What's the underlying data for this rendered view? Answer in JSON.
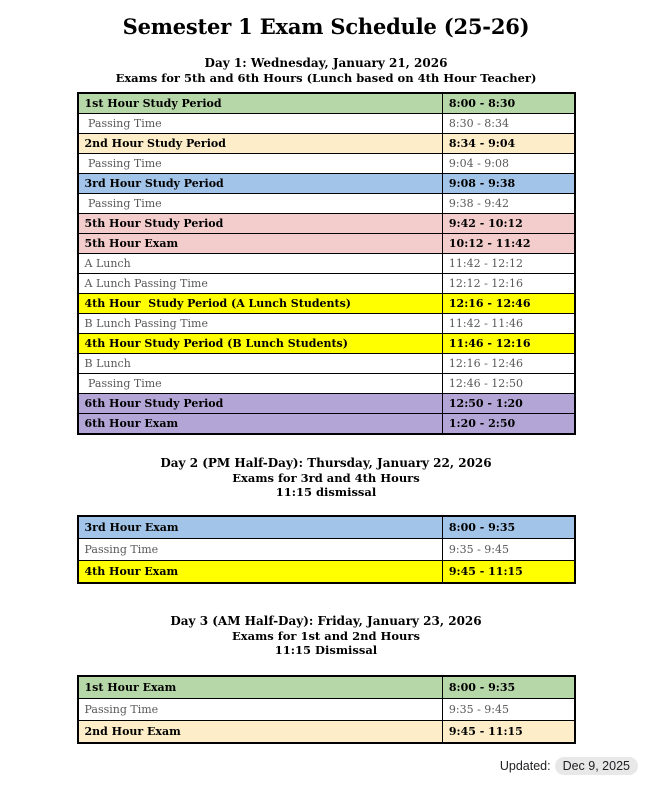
{
  "title": "Semester 1 Exam Schedule (25-26)",
  "footer": {
    "updated_label": "Updated:",
    "updated_date": "Dec 9, 2025"
  },
  "colors": {
    "green": "#b6d7a8",
    "cream": "#fdeec9",
    "blue": "#a2c4e8",
    "pink": "#f3cccc",
    "yellow": "#ffff00",
    "purple": "#b3a6d7",
    "white": "#ffffff"
  },
  "sections": [
    {
      "heading": [
        "Day 1: Wednesday, January 21, 2026",
        "Exams for 5th and 6th Hours (Lunch based on 4th Hour Teacher)"
      ],
      "rows": [
        {
          "label": "1st Hour Study Period",
          "time": "8:00 - 8:30",
          "color": "green",
          "bold": true
        },
        {
          "label": " Passing Time",
          "time": "8:30 - 8:34",
          "color": "white",
          "bold": false
        },
        {
          "label": "2nd Hour Study Period",
          "time": "8:34 - 9:04",
          "color": "cream",
          "bold": true
        },
        {
          "label": " Passing Time",
          "time": "9:04 - 9:08",
          "color": "white",
          "bold": false
        },
        {
          "label": "3rd Hour Study Period",
          "time": "9:08 - 9:38",
          "color": "blue",
          "bold": true
        },
        {
          "label": " Passing Time",
          "time": "9:38 - 9:42",
          "color": "white",
          "bold": false
        },
        {
          "label": "5th Hour Study Period",
          "time": "9:42 - 10:12",
          "color": "pink",
          "bold": true
        },
        {
          "label": "5th Hour Exam",
          "time": "10:12 - 11:42",
          "color": "pink",
          "bold": true
        },
        {
          "label": "A Lunch",
          "time": "11:42 - 12:12",
          "color": "white",
          "bold": false
        },
        {
          "label": "A Lunch Passing Time",
          "time": "12:12 - 12:16",
          "color": "white",
          "bold": false
        },
        {
          "label": "4th Hour  Study Period (A Lunch Students)",
          "time": "12:16 - 12:46",
          "color": "yellow",
          "bold": true
        },
        {
          "label": "B Lunch Passing Time",
          "time": "11:42 - 11:46",
          "color": "white",
          "bold": false
        },
        {
          "label": "4th Hour Study Period (B Lunch Students)",
          "time": "11:46 - 12:16",
          "color": "yellow",
          "bold": true
        },
        {
          "label": "B Lunch",
          "time": "12:16 - 12:46",
          "color": "white",
          "bold": false
        },
        {
          "label": " Passing Time",
          "time": "12:46 - 12:50",
          "color": "white",
          "bold": false
        },
        {
          "label": "6th Hour Study Period",
          "time": "12:50 - 1:20",
          "color": "purple",
          "bold": true
        },
        {
          "label": "6th Hour Exam",
          "time": "1:20 - 2:50",
          "color": "purple",
          "bold": true
        }
      ]
    },
    {
      "heading": [
        "Day 2 (PM Half-Day): Thursday, January 22, 2026",
        "Exams for 3rd and 4th Hours",
        "11:15 dismissal"
      ],
      "rows": [
        {
          "label": "3rd Hour Exam",
          "time": "8:00 - 9:35",
          "color": "blue",
          "bold": true
        },
        {
          "label": "Passing Time",
          "time": "9:35 - 9:45",
          "color": "white",
          "bold": false
        },
        {
          "label": "4th Hour Exam",
          "time": "9:45 - 11:15",
          "color": "yellow",
          "bold": true
        }
      ]
    },
    {
      "heading": [
        "Day 3 (AM Half-Day): Friday, January 23, 2026",
        "Exams for 1st and 2nd Hours",
        "11:15 Dismissal"
      ],
      "rows": [
        {
          "label": "1st Hour Exam",
          "time": "8:00 - 9:35",
          "color": "green",
          "bold": true
        },
        {
          "label": "Passing Time",
          "time": "9:35 - 9:45",
          "color": "white",
          "bold": false
        },
        {
          "label": "2nd Hour Exam",
          "time": "9:45 - 11:15",
          "color": "cream",
          "bold": true
        }
      ]
    }
  ]
}
